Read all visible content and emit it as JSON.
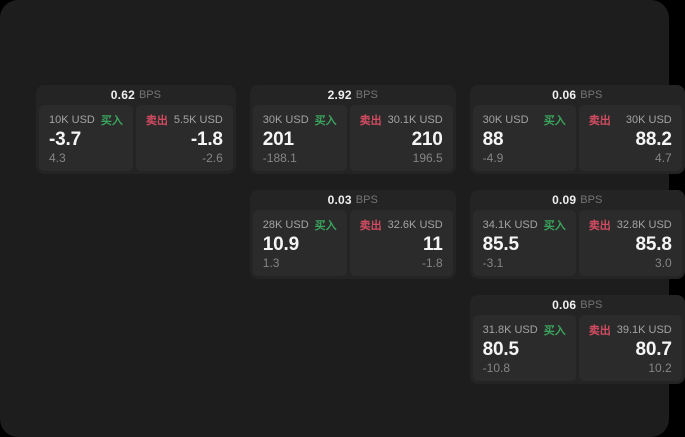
{
  "labels": {
    "bps_unit": "BPS",
    "buy": "买入",
    "sell": "卖出"
  },
  "colors": {
    "buy_green": "#3aa35c",
    "sell_red": "#d24b60",
    "panel_bg": "#1d1d1d",
    "card_bg": "#242424",
    "cell_bg": "#2b2b2b"
  },
  "cards": [
    {
      "bps": "0.62",
      "buy": {
        "amount": "10K USD",
        "price": "-3.7",
        "delta": "4.3"
      },
      "sell": {
        "amount": "5.5K USD",
        "price": "-1.8",
        "delta": "-2.6"
      }
    },
    {
      "bps": "2.92",
      "buy": {
        "amount": "30K USD",
        "price": "201",
        "delta": "-188.1"
      },
      "sell": {
        "amount": "30.1K USD",
        "price": "210",
        "delta": "196.5"
      }
    },
    {
      "bps": "0.06",
      "buy": {
        "amount": "30K USD",
        "price": "88",
        "delta": "-4.9"
      },
      "sell": {
        "amount": "30K USD",
        "price": "88.2",
        "delta": "4.7"
      }
    },
    {
      "bps": "0.03",
      "buy": {
        "amount": "28K USD",
        "price": "10.9",
        "delta": "1.3"
      },
      "sell": {
        "amount": "32.6K USD",
        "price": "11",
        "delta": "-1.8"
      }
    },
    {
      "bps": "0.09",
      "buy": {
        "amount": "34.1K USD",
        "price": "85.5",
        "delta": "-3.1"
      },
      "sell": {
        "amount": "32.8K USD",
        "price": "85.8",
        "delta": "3.0"
      }
    },
    {
      "bps": "0.06",
      "buy": {
        "amount": "31.8K USD",
        "price": "80.5",
        "delta": "-10.8"
      },
      "sell": {
        "amount": "39.1K USD",
        "price": "80.7",
        "delta": "10.2"
      }
    }
  ]
}
